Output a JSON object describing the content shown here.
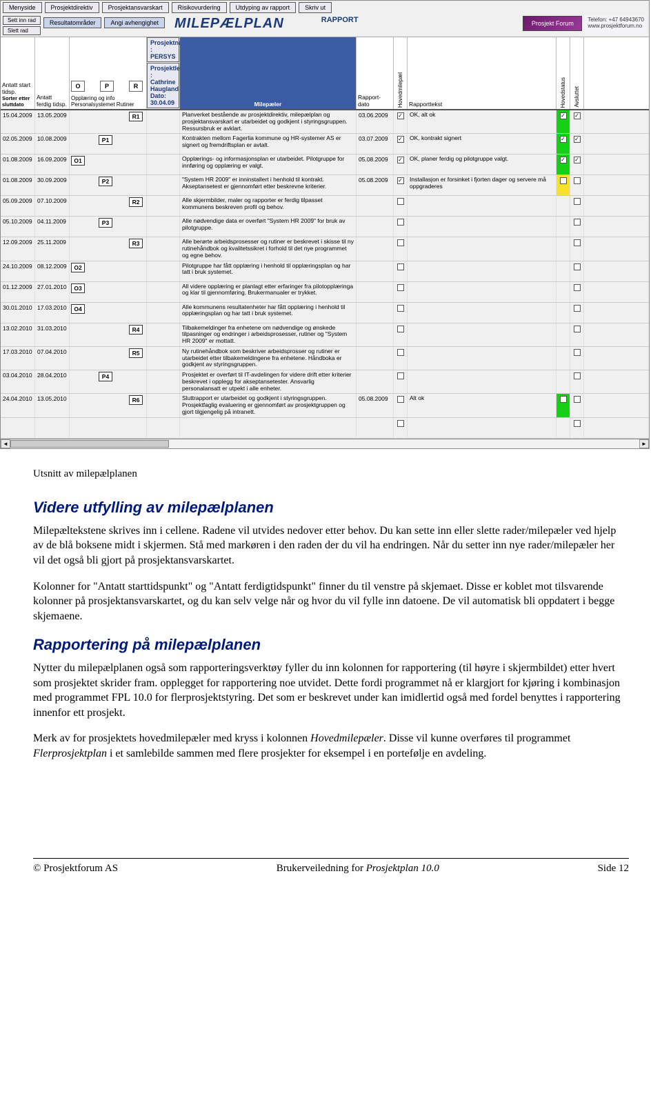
{
  "topButtons": [
    "Menyside",
    "Prosjektdirektiv",
    "Prosjektansvarskart",
    "Risikovurdering",
    "Utdyping av rapport",
    "Skriv ut"
  ],
  "leftButtons": [
    "Sett inn rad",
    "Slett rad"
  ],
  "midButtons": [
    "Resultatområder",
    "Angi avhengighet"
  ],
  "bannerTitle": "MILEPÆLPLAN",
  "rapport": "RAPPORT",
  "forum": "Prosjekt Forum",
  "contact": {
    "tel": "Telefon: +47 64943670",
    "web": "www.prosjektforum.no"
  },
  "projInfo": {
    "name": "Prosjektnavn :  PERSYS",
    "leader": "Prosjektleder :  Cathrine Haugland    Dato:  30.04.09"
  },
  "headers": {
    "c1": "Antatt start tidsp.",
    "c2": "Antatt ferdig tidsp.",
    "c3top": "Opplæring og info",
    "c3bot": "Personalsystemet   Rutiner",
    "c4": "Milepæler",
    "c5": "Rapport-dato",
    "c6": "Hovedmilepæl",
    "c7": "Rapporttekst",
    "c8": "Hovedstatus",
    "c9": "Avsluttet",
    "sort": "Sorter etter sluttdato",
    "opr": [
      "O",
      "P",
      "R"
    ]
  },
  "rows": [
    {
      "a": "15.04.2009",
      "b": "13.05.2009",
      "m": "R1",
      "mcol": "R",
      "txt": "Planverket bestående av prosjektdirektiv, milepælplan og prosjektansvarskart er utarbeidet og godkjent i styringsgruppen. Ressursbruk er avklart.",
      "rd": "03.06.2009",
      "hm": true,
      "rt": "OK, alt ok",
      "hs": "green",
      "av": true
    },
    {
      "a": "02.05.2009",
      "b": "10.08.2009",
      "m": "P1",
      "mcol": "P",
      "txt": "Kontrakten mellom Fagerlia kommune og HR-systemer AS er signert og fremdriftsplan er avtalt.",
      "rd": "03.07.2009",
      "hm": true,
      "rt": "OK, kontrakt signert",
      "hs": "green",
      "av": true
    },
    {
      "a": "01.08.2009",
      "b": "16.09.2009",
      "m": "O1",
      "mcol": "O",
      "txt": "Opplærings- og informasjonsplan er utarbeidet. Pilotgruppe for innføring og opplæring er valgt.",
      "rd": "05.08.2009",
      "hm": true,
      "rt": "OK, planer ferdig og pilotgruppe valgt.",
      "hs": "green",
      "av": true
    },
    {
      "a": "01.08.2009",
      "b": "30.09.2009",
      "m": "P2",
      "mcol": "P",
      "txt": "\"System HR 2009\" er inninstallert i henhold til kontrakt. Akseptansetest er gjennomført etter beskrevne kriterier.",
      "rd": "05.08.2009",
      "hm": true,
      "rt": "Installasjon er forsinket i fjorten dager og servere må oppgraderes",
      "hs": "yellow",
      "av": false
    },
    {
      "a": "05.09.2009",
      "b": "07.10.2009",
      "m": "R2",
      "mcol": "R",
      "txt": "Alle skjermbilder, maler og rapporter er ferdig tilpasset kommunens beskreven profil og behov.",
      "rd": "",
      "hm": false,
      "rt": "",
      "hs": "",
      "av": false
    },
    {
      "a": "05.10.2009",
      "b": "04.11.2009",
      "m": "P3",
      "mcol": "P",
      "txt": "Alle nødvendige data er overført \"System HR 2009\" for bruk av pilotgruppe.",
      "rd": "",
      "hm": false,
      "rt": "",
      "hs": "",
      "av": false
    },
    {
      "a": "12.09.2009",
      "b": "25.11.2009",
      "m": "R3",
      "mcol": "R",
      "txt": "Alle berørte arbeidsprosesser og rutiner er beskrevet i skisse til ny rutinehåndbok og kvalitetssikret i forhold til det nye programmet og egne behov.",
      "rd": "",
      "hm": false,
      "rt": "",
      "hs": "",
      "av": false
    },
    {
      "a": "24.10.2009",
      "b": "08.12.2009",
      "m": "O2",
      "mcol": "O",
      "txt": "Pilotgruppe har fått opplæring i henhold til opplæringsplan og har tatt i bruk systemet.",
      "rd": "",
      "hm": false,
      "rt": "",
      "hs": "",
      "av": false
    },
    {
      "a": "01.12.2009",
      "b": "27.01.2010",
      "m": "O3",
      "mcol": "O",
      "txt": "All videre opplæring er planlagt etter erfaringer fra pilotopplæringa og klar til gjennomføring. Brukermanualer er trykket.",
      "rd": "",
      "hm": false,
      "rt": "",
      "hs": "",
      "av": false
    },
    {
      "a": "30.01.2010",
      "b": "17.03.2010",
      "m": "O4",
      "mcol": "O",
      "txt": "Alle kommunens resultatenheter har fått opplæring i henhold til opplæringsplan og har tatt i bruk systemet.",
      "rd": "",
      "hm": false,
      "rt": "",
      "hs": "",
      "av": false
    },
    {
      "a": "13.02.2010",
      "b": "31.03.2010",
      "m": "R4",
      "mcol": "R",
      "txt": "Tilbakemeldinger fra enhetene om nødvendige og ønskede tilpasninger og endringer i arbeidsprosesser, rutiner og \"System HR 2009\" er mottatt.",
      "rd": "",
      "hm": false,
      "rt": "",
      "hs": "",
      "av": false
    },
    {
      "a": "17.03.2010",
      "b": "07.04.2010",
      "m": "R5",
      "mcol": "R",
      "txt": "Ny rutinehåndbok som beskriver arbeidsprosser og rutiner er utarbeidet etter tilbakemeldingene fra enhetene. Håndboka er godkjent av styringsgruppen.",
      "rd": "",
      "hm": false,
      "rt": "",
      "hs": "",
      "av": false
    },
    {
      "a": "03.04.2010",
      "b": "28.04.2010",
      "m": "P4",
      "mcol": "P",
      "txt": "Prosjektet er overført til IT-avdelingen for videre drift etter kriterier beskrevet i opplegg for akseptansetester. Ansvarlig personalansatt er utpekt i alle enheter.",
      "rd": "",
      "hm": false,
      "rt": "",
      "hs": "",
      "av": false
    },
    {
      "a": "24.04.2010",
      "b": "13.05.2010",
      "m": "R6",
      "mcol": "R",
      "txt": "Sluttrapport er utarbeidet og godkjent i styringsgruppen. Prosjektfaglig evaluering er gjennomført av prosjektgruppen og gjort tilgjengelig på intranett.",
      "rd": "05.08.2009",
      "hm": false,
      "rt": "Alt ok",
      "hs": "green",
      "av": false
    },
    {
      "a": "",
      "b": "",
      "m": "",
      "mcol": "",
      "txt": "",
      "rd": "",
      "hm": false,
      "rt": "",
      "hs": "",
      "av": false
    }
  ],
  "docText": {
    "caption": "Utsnitt av milepælplanen",
    "h1": "Videre utfylling av milepælplanen",
    "p1": "Milepæltekstene skrives inn i cellene. Radene vil utvides nedover etter behov. Du kan sette inn eller slette rader/milepæler ved hjelp av de blå boksene midt i skjermen. Stå med markøren i den raden der du vil ha endringen. Når du setter inn nye rader/milepæler her vil det også bli gjort på prosjektansvarskartet.",
    "p2": "Kolonner for \"Antatt starttidspunkt\" og \"Antatt ferdigtidspunkt\" finner du til venstre på skjemaet. Disse er koblet mot tilsvarende kolonner på prosjektansvarskartet, og du kan selv velge når og hvor du vil fylle inn datoene. De vil automatisk bli oppdatert i begge skjemaene.",
    "h2": "Rapportering på milepælplanen",
    "p3": "Nytter du milepælplanen også som rapporteringsverktøy fyller du inn kolonnen for rapportering (til høyre i skjermbildet) etter hvert som prosjektet skrider fram. opplegget for rapportering noe utvidet. Dette fordi programmet nå er klargjort for kjøring i kombinasjon med programmet FPL 10.0 for flerprosjektstyring. Det som er beskrevet under kan imidlertid også med fordel benyttes i rapportering innenfor ett prosjekt.",
    "p4a": "Merk av for prosjektets hovedmilepæler med kryss i kolonnen ",
    "p4i": "Hovedmilepæler",
    "p4b": ". Disse vil kunne overføres til programmet ",
    "p4i2": "Flerprosjektplan",
    "p4c": " i et samlebilde sammen med flere prosjekter for eksempel i en portefølje en avdeling."
  },
  "footer": {
    "left": "© Prosjektforum AS",
    "mid": "Brukerveiledning for ",
    "midEm": "Prosjektplan 10.0",
    "right": "Side 12"
  }
}
